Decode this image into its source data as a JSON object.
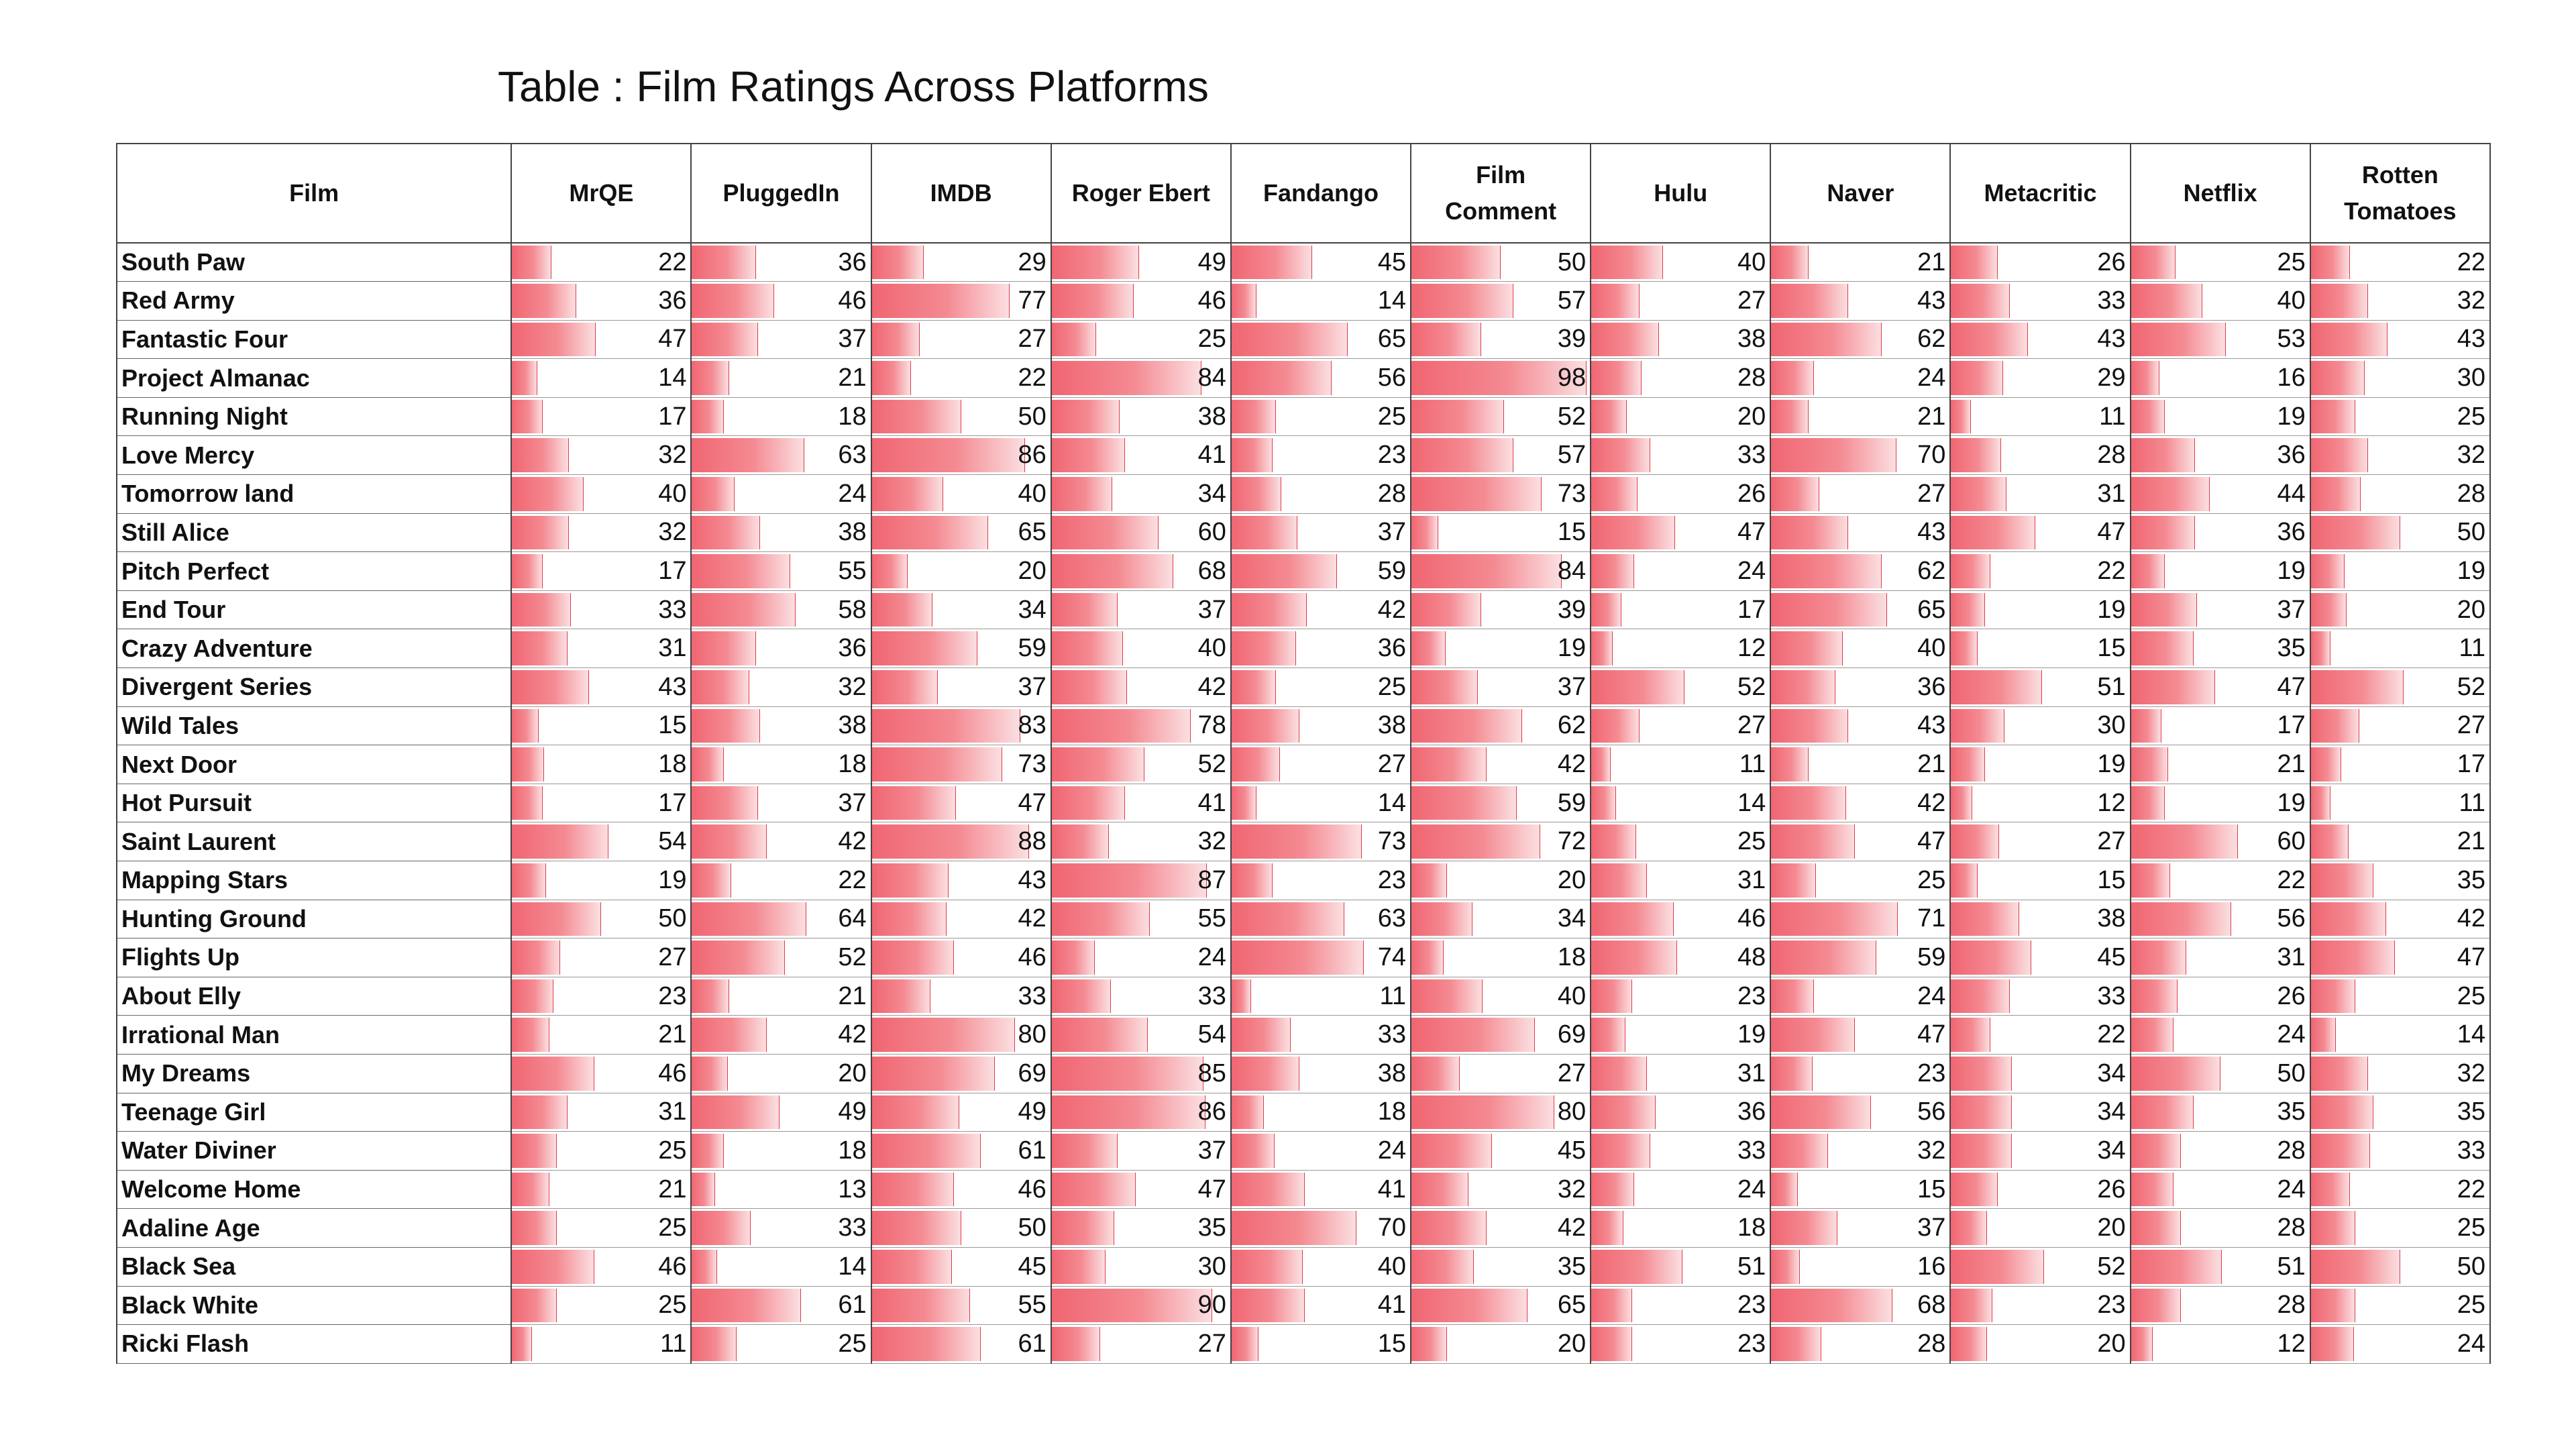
{
  "title": "Table : Film Ratings Across Platforms",
  "bar_color": "#f06672",
  "chart_data": {
    "type": "table",
    "title": "Table : Film Ratings Across Platforms",
    "bar_max": 100,
    "columns": [
      "Film",
      "MrQE",
      "PluggedIn",
      "IMDB",
      "Roger Ebert",
      "Fandango",
      "Film Comment",
      "Hulu",
      "Naver",
      "Metacritic",
      "Netflix",
      "Rotten Tomatoes"
    ],
    "rows": [
      {
        "film": "South Paw",
        "values": [
          22,
          36,
          29,
          49,
          45,
          50,
          40,
          21,
          26,
          25,
          22
        ]
      },
      {
        "film": "Red Army",
        "values": [
          36,
          46,
          77,
          46,
          14,
          57,
          27,
          43,
          33,
          40,
          32
        ]
      },
      {
        "film": "Fantastic Four",
        "values": [
          47,
          37,
          27,
          25,
          65,
          39,
          38,
          62,
          43,
          53,
          43
        ]
      },
      {
        "film": "Project Almanac",
        "values": [
          14,
          21,
          22,
          84,
          56,
          98,
          28,
          24,
          29,
          16,
          30
        ]
      },
      {
        "film": "Running Night",
        "values": [
          17,
          18,
          50,
          38,
          25,
          52,
          20,
          21,
          11,
          19,
          25
        ]
      },
      {
        "film": "Love Mercy",
        "values": [
          32,
          63,
          86,
          41,
          23,
          57,
          33,
          70,
          28,
          36,
          32
        ]
      },
      {
        "film": "Tomorrow land",
        "values": [
          40,
          24,
          40,
          34,
          28,
          73,
          26,
          27,
          31,
          44,
          28
        ]
      },
      {
        "film": "Still Alice",
        "values": [
          32,
          38,
          65,
          60,
          37,
          15,
          47,
          43,
          47,
          36,
          50
        ]
      },
      {
        "film": "Pitch Perfect",
        "values": [
          17,
          55,
          20,
          68,
          59,
          84,
          24,
          62,
          22,
          19,
          19
        ]
      },
      {
        "film": "End Tour",
        "values": [
          33,
          58,
          34,
          37,
          42,
          39,
          17,
          65,
          19,
          37,
          20
        ]
      },
      {
        "film": "Crazy Adventure",
        "values": [
          31,
          36,
          59,
          40,
          36,
          19,
          12,
          40,
          15,
          35,
          11
        ]
      },
      {
        "film": "Divergent Series",
        "values": [
          43,
          32,
          37,
          42,
          25,
          37,
          52,
          36,
          51,
          47,
          52
        ]
      },
      {
        "film": "Wild Tales",
        "values": [
          15,
          38,
          83,
          78,
          38,
          62,
          27,
          43,
          30,
          17,
          27
        ]
      },
      {
        "film": "Next Door",
        "values": [
          18,
          18,
          73,
          52,
          27,
          42,
          11,
          21,
          19,
          21,
          17
        ]
      },
      {
        "film": "Hot Pursuit",
        "values": [
          17,
          37,
          47,
          41,
          14,
          59,
          14,
          42,
          12,
          19,
          11
        ]
      },
      {
        "film": "Saint Laurent",
        "values": [
          54,
          42,
          88,
          32,
          73,
          72,
          25,
          47,
          27,
          60,
          21
        ]
      },
      {
        "film": "Mapping Stars",
        "values": [
          19,
          22,
          43,
          87,
          23,
          20,
          31,
          25,
          15,
          22,
          35
        ]
      },
      {
        "film": "Hunting Ground",
        "values": [
          50,
          64,
          42,
          55,
          63,
          34,
          46,
          71,
          38,
          56,
          42
        ]
      },
      {
        "film": "Flights Up",
        "values": [
          27,
          52,
          46,
          24,
          74,
          18,
          48,
          59,
          45,
          31,
          47
        ]
      },
      {
        "film": "About Elly",
        "values": [
          23,
          21,
          33,
          33,
          11,
          40,
          23,
          24,
          33,
          26,
          25
        ]
      },
      {
        "film": "Irrational Man",
        "values": [
          21,
          42,
          80,
          54,
          33,
          69,
          19,
          47,
          22,
          24,
          14
        ]
      },
      {
        "film": "My Dreams",
        "values": [
          46,
          20,
          69,
          85,
          38,
          27,
          31,
          23,
          34,
          50,
          32
        ]
      },
      {
        "film": "Teenage Girl",
        "values": [
          31,
          49,
          49,
          86,
          18,
          80,
          36,
          56,
          34,
          35,
          35
        ]
      },
      {
        "film": "Water Diviner",
        "values": [
          25,
          18,
          61,
          37,
          24,
          45,
          33,
          32,
          34,
          28,
          33
        ]
      },
      {
        "film": "Welcome Home",
        "values": [
          21,
          13,
          46,
          47,
          41,
          32,
          24,
          15,
          26,
          24,
          22
        ]
      },
      {
        "film": "Adaline Age",
        "values": [
          25,
          33,
          50,
          35,
          70,
          42,
          18,
          37,
          20,
          28,
          25
        ]
      },
      {
        "film": "Black Sea",
        "values": [
          46,
          14,
          45,
          30,
          40,
          35,
          51,
          16,
          52,
          51,
          50
        ]
      },
      {
        "film": "Black White",
        "values": [
          25,
          61,
          55,
          90,
          41,
          65,
          23,
          68,
          23,
          28,
          25
        ]
      },
      {
        "film": "Ricki Flash",
        "values": [
          11,
          25,
          61,
          27,
          15,
          20,
          23,
          28,
          20,
          12,
          24
        ]
      }
    ]
  }
}
